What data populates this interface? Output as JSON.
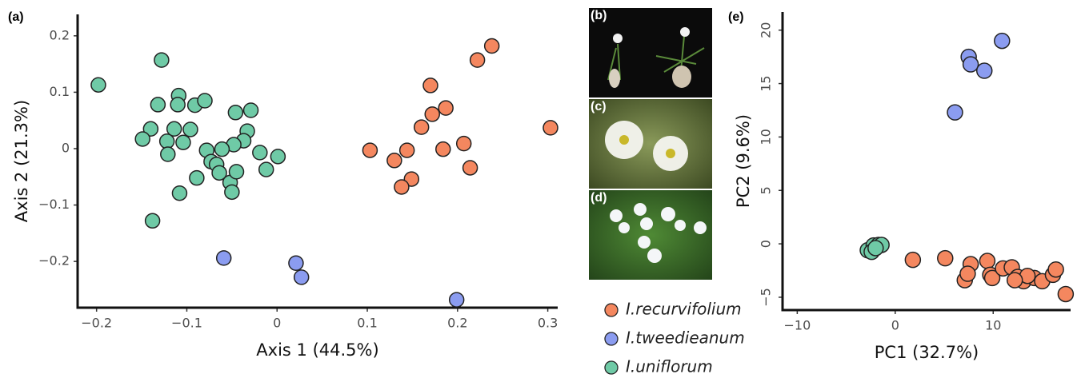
{
  "chart_data": [
    {
      "type": "scatter",
      "panel_label": "(a)",
      "x_label": "Axis 1 (44.5%)",
      "y_label": "Axis 2 (21.3%)",
      "xlim": [
        -0.221,
        0.311
      ],
      "ylim": [
        -0.282,
        0.238
      ],
      "xticks": [
        {
          "value": -0.2,
          "label": "−0.2"
        },
        {
          "value": -0.1,
          "label": "−0.1"
        },
        0,
        0.1,
        0.2,
        0.3
      ],
      "yticks": [
        {
          "value": -0.2,
          "label": "−0.2"
        },
        {
          "value": -0.1,
          "label": "−0.1"
        },
        0,
        0.1,
        0.2
      ],
      "series": [
        {
          "name": "I.recurvifolium",
          "color": "#f4875f",
          "x": [
            0.238,
            0.222,
            0.17,
            0.187,
            0.172,
            0.16,
            0.303,
            0.103,
            0.144,
            0.184,
            0.207,
            0.214,
            0.13,
            0.149,
            0.138
          ],
          "y": [
            0.182,
            0.157,
            0.112,
            0.072,
            0.061,
            0.038,
            0.037,
            -0.003,
            -0.003,
            -0.001,
            0.009,
            -0.034,
            -0.021,
            -0.054,
            -0.068
          ]
        },
        {
          "name": "I.tweedieanum",
          "color": "#8b9cf0",
          "x": [
            -0.059,
            0.021,
            0.027,
            0.199
          ],
          "y": [
            -0.194,
            -0.203,
            -0.228,
            -0.268
          ]
        },
        {
          "name": "I.uniflorum",
          "color": "#6fcaa6",
          "x": [
            -0.198,
            -0.128,
            -0.132,
            -0.109,
            -0.11,
            -0.091,
            -0.08,
            -0.046,
            -0.029,
            -0.14,
            -0.149,
            -0.114,
            -0.096,
            -0.122,
            -0.121,
            -0.104,
            -0.033,
            -0.037,
            -0.048,
            -0.061,
            -0.078,
            -0.073,
            -0.067,
            -0.089,
            -0.064,
            -0.052,
            -0.045,
            -0.05,
            -0.019,
            -0.012,
            0.001,
            -0.108,
            -0.138
          ],
          "y": [
            0.113,
            0.157,
            0.078,
            0.094,
            0.078,
            0.077,
            0.085,
            0.064,
            0.068,
            0.035,
            0.017,
            0.035,
            0.034,
            0.013,
            -0.01,
            0.011,
            0.031,
            0.014,
            0.007,
            -0.001,
            -0.003,
            -0.023,
            -0.028,
            -0.052,
            -0.043,
            -0.06,
            -0.041,
            -0.077,
            -0.007,
            -0.037,
            -0.014,
            -0.079,
            -0.128
          ]
        }
      ]
    },
    {
      "type": "scatter",
      "panel_label": "(e)",
      "x_label": "PC1 (32.7%)",
      "y_label": "PC2 (9.6%)",
      "xlim": [
        -11.5,
        17.9
      ],
      "ylim": [
        -6.2,
        21.7
      ],
      "xticks": [
        {
          "value": -10,
          "label": "−10"
        },
        0,
        10
      ],
      "yticks": [
        {
          "value": -5,
          "label": "−5"
        },
        0,
        5,
        10,
        15,
        20
      ],
      "series": [
        {
          "color": "#f4875f",
          "x": [
            1.8,
            5.1,
            7.7,
            7.1,
            7.4,
            9.4,
            9.7,
            9.9,
            11.0,
            11.9,
            12.5,
            13.1,
            14.2,
            15.0,
            16.1,
            16.4,
            17.4,
            13.5,
            12.2
          ],
          "y": [
            -1.5,
            -1.35,
            -1.9,
            -3.4,
            -2.8,
            -1.6,
            -2.9,
            -3.2,
            -2.3,
            -2.2,
            -3.1,
            -3.5,
            -3.2,
            -3.5,
            -2.9,
            -2.4,
            -4.7,
            -3.0,
            -3.4
          ]
        },
        {
          "color": "#8b9cf0",
          "x": [
            10.9,
            7.5,
            7.7,
            9.1,
            6.1
          ],
          "y": [
            19.0,
            17.5,
            16.8,
            16.2,
            12.3
          ]
        },
        {
          "color": "#6fcaa6",
          "x": [
            -2.8,
            -2.2,
            -1.7,
            -2.4,
            -1.4,
            -2.0
          ],
          "y": [
            -0.6,
            -0.15,
            -0.1,
            -0.75,
            -0.1,
            -0.4
          ]
        }
      ]
    }
  ],
  "photos": {
    "labels": [
      "(b)",
      "(c)",
      "(d)"
    ]
  }
}
